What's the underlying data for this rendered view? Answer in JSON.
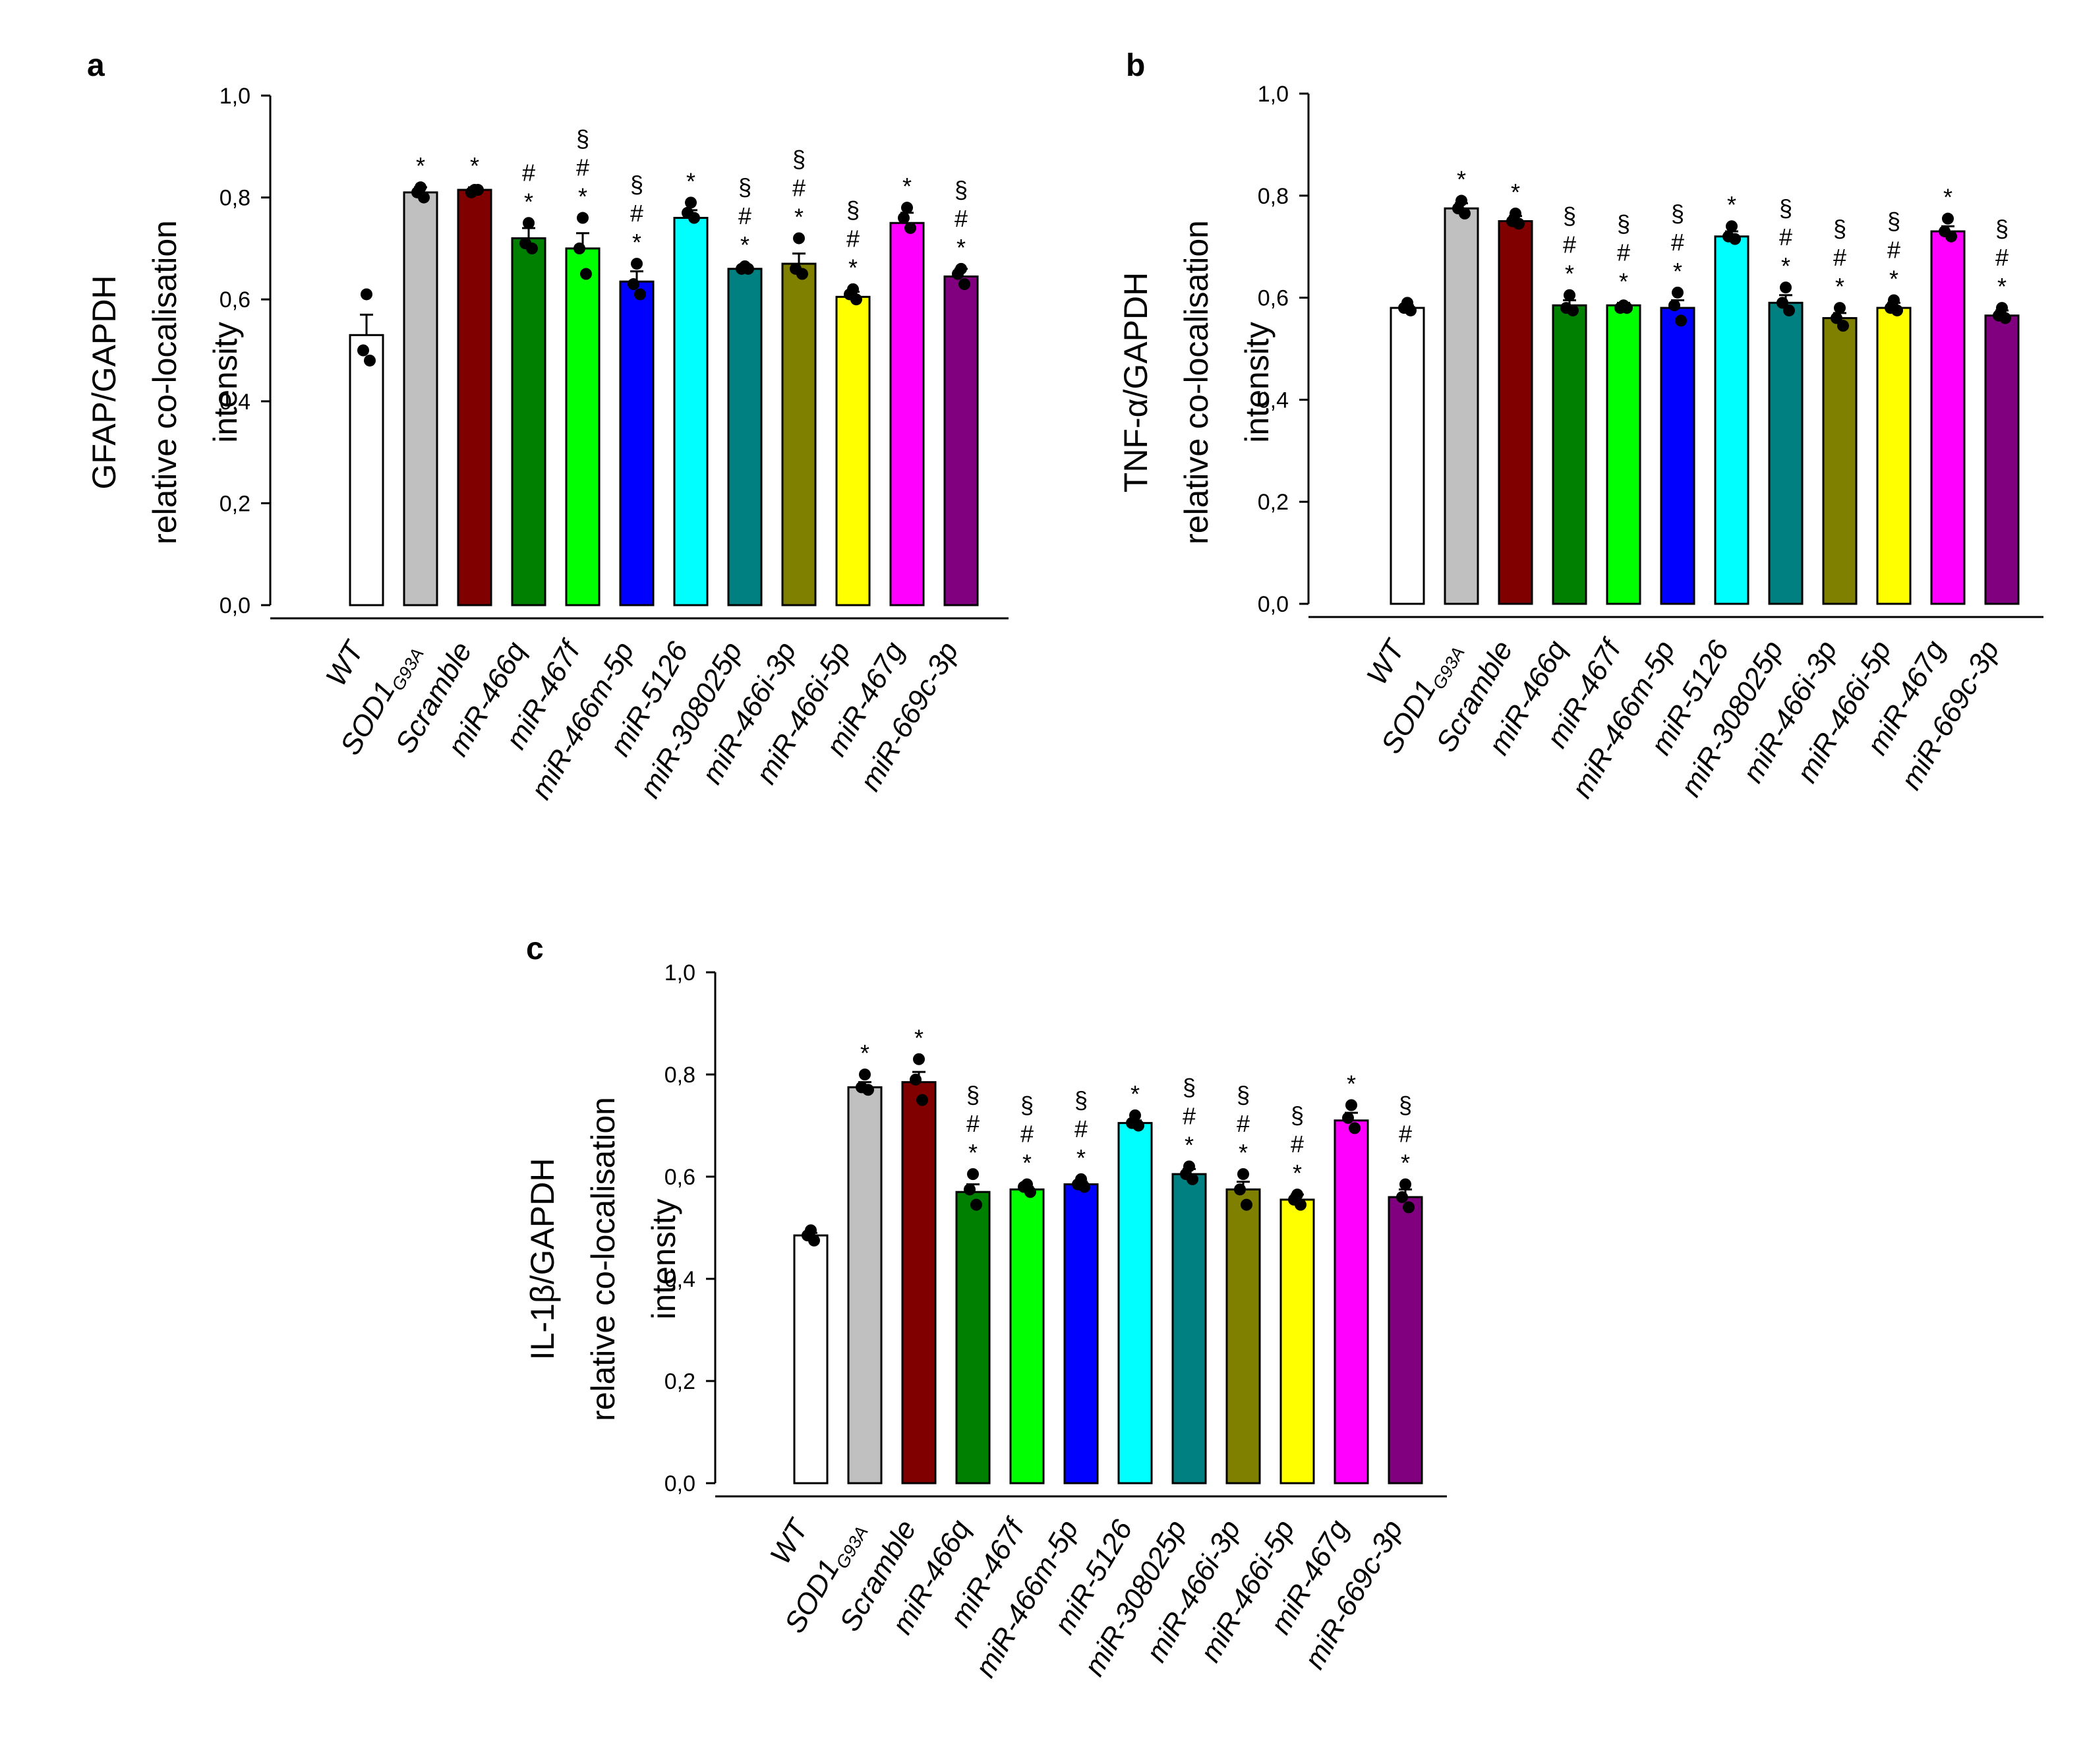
{
  "figure": {
    "panels": [
      "a",
      "b",
      "c"
    ]
  },
  "chart_data": [
    {
      "panel": "a",
      "type": "bar",
      "ylabel_lines": [
        "GFAP/GAPDH",
        "relative co-localisation",
        "intensity"
      ],
      "ylim": [
        0,
        1.0
      ],
      "yticks": [
        "0,0",
        "0,2",
        "0,4",
        "0,6",
        "0,8",
        "1,0"
      ],
      "categories": [
        "WT",
        "SOD1",
        "Scramble",
        "miR-466q",
        "miR-467f",
        "miR-466m-5p",
        "miR-5126",
        "miR-308025p",
        "miR-466i-3p",
        "miR-466i-5p",
        "miR-467g",
        "miR-669c-3p"
      ],
      "category_subscripts": [
        "",
        "G93A",
        "",
        "",
        "",
        "",
        "",
        "",
        "",
        "",
        "",
        ""
      ],
      "colors": [
        "#ffffff",
        "#c0c0c0",
        "#800000",
        "#008000",
        "#00ff00",
        "#0000ff",
        "#00ffff",
        "#008080",
        "#808000",
        "#ffff00",
        "#ff00ff",
        "#800080"
      ],
      "values": [
        0.53,
        0.81,
        0.815,
        0.72,
        0.7,
        0.635,
        0.76,
        0.66,
        0.67,
        0.605,
        0.75,
        0.645
      ],
      "errors": [
        0.04,
        0.01,
        0.005,
        0.02,
        0.03,
        0.02,
        0.015,
        0.005,
        0.02,
        0.01,
        0.02,
        0.015
      ],
      "points": [
        [
          0.61,
          0.5,
          0.48
        ],
        [
          0.82,
          0.81,
          0.8
        ],
        [
          0.815,
          0.81,
          0.815
        ],
        [
          0.75,
          0.71,
          0.7
        ],
        [
          0.76,
          0.7,
          0.65
        ],
        [
          0.67,
          0.63,
          0.61
        ],
        [
          0.79,
          0.77,
          0.76
        ],
        [
          0.665,
          0.66,
          0.66
        ],
        [
          0.72,
          0.66,
          0.65
        ],
        [
          0.62,
          0.61,
          0.6
        ],
        [
          0.78,
          0.76,
          0.74
        ],
        [
          0.66,
          0.65,
          0.63
        ]
      ],
      "significance": [
        [],
        [
          "*"
        ],
        [
          "*"
        ],
        [
          "#",
          "*"
        ],
        [
          "§",
          "#",
          "*"
        ],
        [
          "§",
          "#",
          "*"
        ],
        [
          "*"
        ],
        [
          "§",
          "#",
          "*"
        ],
        [
          "§",
          "#",
          "*"
        ],
        [
          "§",
          "#",
          "*"
        ],
        [
          "*"
        ],
        [
          "§",
          "#",
          "*"
        ]
      ]
    },
    {
      "panel": "b",
      "type": "bar",
      "ylabel_lines": [
        "TNF-α/GAPDH",
        "relative co-localisation",
        "intensity"
      ],
      "ylim": [
        0,
        1.0
      ],
      "yticks": [
        "0,0",
        "0,2",
        "0,4",
        "0,6",
        "0,8",
        "1,0"
      ],
      "categories": [
        "WT",
        "SOD1",
        "Scramble",
        "miR-466q",
        "miR-467f",
        "miR-466m-5p",
        "miR-5126",
        "miR-308025p",
        "miR-466i-3p",
        "miR-466i-5p",
        "miR-467g",
        "miR-669c-3p"
      ],
      "category_subscripts": [
        "",
        "G93A",
        "",
        "",
        "",
        "",
        "",
        "",
        "",
        "",
        "",
        ""
      ],
      "colors": [
        "#ffffff",
        "#c0c0c0",
        "#800000",
        "#008000",
        "#00ff00",
        "#0000ff",
        "#00ffff",
        "#008080",
        "#808000",
        "#ffff00",
        "#ff00ff",
        "#800080"
      ],
      "values": [
        0.58,
        0.775,
        0.75,
        0.585,
        0.585,
        0.58,
        0.72,
        0.59,
        0.56,
        0.58,
        0.73,
        0.565
      ],
      "errors": [
        0.005,
        0.01,
        0.01,
        0.01,
        0.005,
        0.015,
        0.01,
        0.015,
        0.01,
        0.01,
        0.01,
        0.01
      ],
      "points": [
        [
          0.59,
          0.58,
          0.575
        ],
        [
          0.79,
          0.775,
          0.765
        ],
        [
          0.765,
          0.75,
          0.745
        ],
        [
          0.605,
          0.58,
          0.575
        ],
        [
          0.585,
          0.58,
          0.58
        ],
        [
          0.61,
          0.585,
          0.555
        ],
        [
          0.74,
          0.72,
          0.715
        ],
        [
          0.62,
          0.59,
          0.575
        ],
        [
          0.58,
          0.56,
          0.545
        ],
        [
          0.595,
          0.58,
          0.575
        ],
        [
          0.755,
          0.73,
          0.72
        ],
        [
          0.58,
          0.565,
          0.56
        ]
      ],
      "significance": [
        [],
        [
          "*"
        ],
        [
          "*"
        ],
        [
          "§",
          "#",
          "*"
        ],
        [
          "§",
          "#",
          "*"
        ],
        [
          "§",
          "#",
          "*"
        ],
        [
          "*"
        ],
        [
          "§",
          "#",
          "*"
        ],
        [
          "§",
          "#",
          "*"
        ],
        [
          "§",
          "#",
          "*"
        ],
        [
          "*"
        ],
        [
          "§",
          "#",
          "*"
        ]
      ]
    },
    {
      "panel": "c",
      "type": "bar",
      "ylabel_lines": [
        "IL-1β/GAPDH",
        "relative co-localisation",
        "intensity"
      ],
      "ylim": [
        0,
        1.0
      ],
      "yticks": [
        "0,0",
        "0,2",
        "0,4",
        "0,6",
        "0,8",
        "1,0"
      ],
      "categories": [
        "WT",
        "SOD1",
        "Scramble",
        "miR-466q",
        "miR-467f",
        "miR-466m-5p",
        "miR-5126",
        "miR-308025p",
        "miR-466i-3p",
        "miR-466i-5p",
        "miR-467g",
        "miR-669c-3p"
      ],
      "category_subscripts": [
        "",
        "G93A",
        "",
        "",
        "",
        "",
        "",
        "",
        "",
        "",
        "",
        ""
      ],
      "colors": [
        "#ffffff",
        "#c0c0c0",
        "#800000",
        "#008000",
        "#00ff00",
        "#0000ff",
        "#00ffff",
        "#008080",
        "#808000",
        "#ffff00",
        "#ff00ff",
        "#800080"
      ],
      "values": [
        0.485,
        0.775,
        0.785,
        0.57,
        0.575,
        0.585,
        0.705,
        0.605,
        0.575,
        0.555,
        0.71,
        0.56
      ],
      "errors": [
        0.005,
        0.01,
        0.02,
        0.015,
        0.005,
        0.005,
        0.005,
        0.01,
        0.015,
        0.01,
        0.015,
        0.015
      ],
      "points": [
        [
          0.495,
          0.485,
          0.475
        ],
        [
          0.8,
          0.775,
          0.77
        ],
        [
          0.83,
          0.79,
          0.75
        ],
        [
          0.605,
          0.575,
          0.545
        ],
        [
          0.585,
          0.58,
          0.57
        ],
        [
          0.595,
          0.585,
          0.58
        ],
        [
          0.72,
          0.705,
          0.7
        ],
        [
          0.62,
          0.605,
          0.595
        ],
        [
          0.605,
          0.575,
          0.545
        ],
        [
          0.565,
          0.555,
          0.545
        ],
        [
          0.74,
          0.715,
          0.695
        ],
        [
          0.585,
          0.56,
          0.54
        ]
      ],
      "significance": [
        [],
        [
          "*"
        ],
        [
          "*"
        ],
        [
          "§",
          "#",
          "*"
        ],
        [
          "§",
          "#",
          "*"
        ],
        [
          "§",
          "#",
          "*"
        ],
        [
          "*"
        ],
        [
          "§",
          "#",
          "*"
        ],
        [
          "§",
          "#",
          "*"
        ],
        [
          "§",
          "#",
          "*"
        ],
        [
          "*"
        ],
        [
          "§",
          "#",
          "*"
        ]
      ]
    }
  ]
}
